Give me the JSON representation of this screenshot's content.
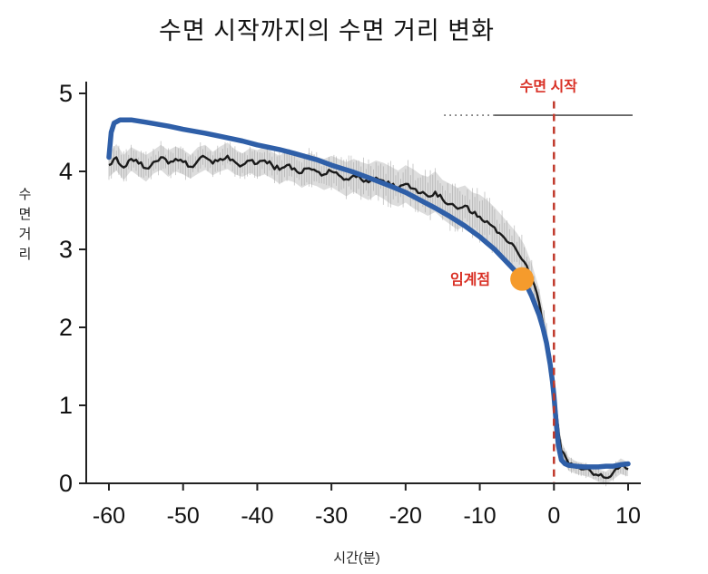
{
  "chart_data": {
    "type": "line",
    "title": "수면 시작까지의 수면 거리 변화",
    "xlabel": "시간(분)",
    "ylabel": "수면거리",
    "xlim": [
      -60,
      10
    ],
    "ylim": [
      0,
      5
    ],
    "xticks": [
      -60,
      -50,
      -40,
      -30,
      -20,
      -10,
      0,
      10
    ],
    "yticks": [
      0,
      1,
      2,
      3,
      4,
      5
    ],
    "grid": false,
    "legend": "none",
    "colors": {
      "model_line": "#2f5fa8",
      "mean_line": "#1a1a1a",
      "band": "#d7d7d7",
      "band_texture": "#9a9a9a",
      "accent_red": "#d93025",
      "onset_line_color": "#c0392b",
      "critical_dot": "#f59b2c",
      "axis": "#222222"
    },
    "mean": {
      "x_start": -60,
      "x_step": 1,
      "values": [
        4.08,
        4.18,
        4.05,
        4.16,
        4.1,
        4.04,
        4.12,
        4.18,
        4.1,
        4.16,
        4.12,
        4.06,
        4.14,
        4.18,
        4.1,
        4.16,
        4.2,
        4.12,
        4.08,
        4.14,
        4.1,
        4.14,
        4.08,
        4.02,
        4.08,
        4.04,
        3.98,
        4.04,
        4.0,
        3.96,
        4.0,
        3.95,
        3.9,
        3.95,
        3.9,
        3.86,
        3.92,
        3.88,
        3.82,
        3.78,
        3.84,
        3.78,
        3.72,
        3.68,
        3.74,
        3.64,
        3.58,
        3.52,
        3.56,
        3.46,
        3.42,
        3.36,
        3.28,
        3.18,
        3.08,
        2.98,
        2.84,
        2.62,
        2.32,
        1.85,
        1.15,
        0.42,
        0.25,
        0.2,
        0.18,
        0.15,
        0.1,
        0.07,
        0.14,
        0.22,
        0.18
      ]
    },
    "band_halfwidth": [
      0.15,
      0.17,
      0.16,
      0.15,
      0.16,
      0.17,
      0.15,
      0.16,
      0.17,
      0.16,
      0.16,
      0.15,
      0.17,
      0.16,
      0.15,
      0.16,
      0.17,
      0.16,
      0.15,
      0.16,
      0.17,
      0.18,
      0.17,
      0.18,
      0.19,
      0.18,
      0.19,
      0.2,
      0.19,
      0.2,
      0.2,
      0.21,
      0.22,
      0.21,
      0.22,
      0.23,
      0.22,
      0.23,
      0.24,
      0.23,
      0.24,
      0.25,
      0.24,
      0.25,
      0.26,
      0.25,
      0.26,
      0.27,
      0.26,
      0.27,
      0.28,
      0.27,
      0.26,
      0.25,
      0.24,
      0.23,
      0.22,
      0.2,
      0.18,
      0.16,
      0.14,
      0.11,
      0.09,
      0.08,
      0.08,
      0.08,
      0.08,
      0.08,
      0.09,
      0.1,
      0.09
    ],
    "model": {
      "points": [
        [
          -60,
          4.18
        ],
        [
          -59.7,
          4.5
        ],
        [
          -59.3,
          4.62
        ],
        [
          -58.5,
          4.66
        ],
        [
          -57,
          4.66
        ],
        [
          -55,
          4.63
        ],
        [
          -52,
          4.58
        ],
        [
          -50,
          4.54
        ],
        [
          -47,
          4.49
        ],
        [
          -45,
          4.45
        ],
        [
          -42,
          4.39
        ],
        [
          -40,
          4.34
        ],
        [
          -37,
          4.28
        ],
        [
          -35,
          4.23
        ],
        [
          -32,
          4.15
        ],
        [
          -30,
          4.08
        ],
        [
          -27,
          3.99
        ],
        [
          -25,
          3.92
        ],
        [
          -22,
          3.81
        ],
        [
          -20,
          3.73
        ],
        [
          -18,
          3.63
        ],
        [
          -16,
          3.53
        ],
        [
          -14,
          3.42
        ],
        [
          -12,
          3.3
        ],
        [
          -10,
          3.16
        ],
        [
          -9,
          3.08
        ],
        [
          -8,
          3.0
        ],
        [
          -7,
          2.9
        ],
        [
          -6,
          2.8
        ],
        [
          -5,
          2.7
        ],
        [
          -4.3,
          2.62
        ],
        [
          -3.5,
          2.5
        ],
        [
          -3,
          2.4
        ],
        [
          -2,
          2.16
        ],
        [
          -1.5,
          2.0
        ],
        [
          -1,
          1.8
        ],
        [
          -0.5,
          1.52
        ],
        [
          -0.2,
          1.3
        ],
        [
          0,
          1.12
        ],
        [
          0.3,
          0.78
        ],
        [
          0.6,
          0.48
        ],
        [
          1,
          0.3
        ],
        [
          1.5,
          0.25
        ],
        [
          2,
          0.23
        ],
        [
          3,
          0.22
        ],
        [
          4,
          0.21
        ],
        [
          5,
          0.21
        ],
        [
          6,
          0.21
        ],
        [
          7,
          0.22
        ],
        [
          8,
          0.22
        ],
        [
          9,
          0.24
        ],
        [
          10,
          0.25
        ]
      ]
    },
    "annotations": {
      "onset_line": {
        "x": 0,
        "y_top": 4.9,
        "label": "수면 시작",
        "style": "dashed"
      },
      "critical_point": {
        "x": -4.3,
        "y": 2.62,
        "label": "임계점"
      },
      "sig_line": {
        "y": 4.72,
        "dotted_range": [
          -14.8,
          -8
        ],
        "solid_range": [
          -8,
          10.6
        ],
        "color": "#333333"
      }
    }
  }
}
